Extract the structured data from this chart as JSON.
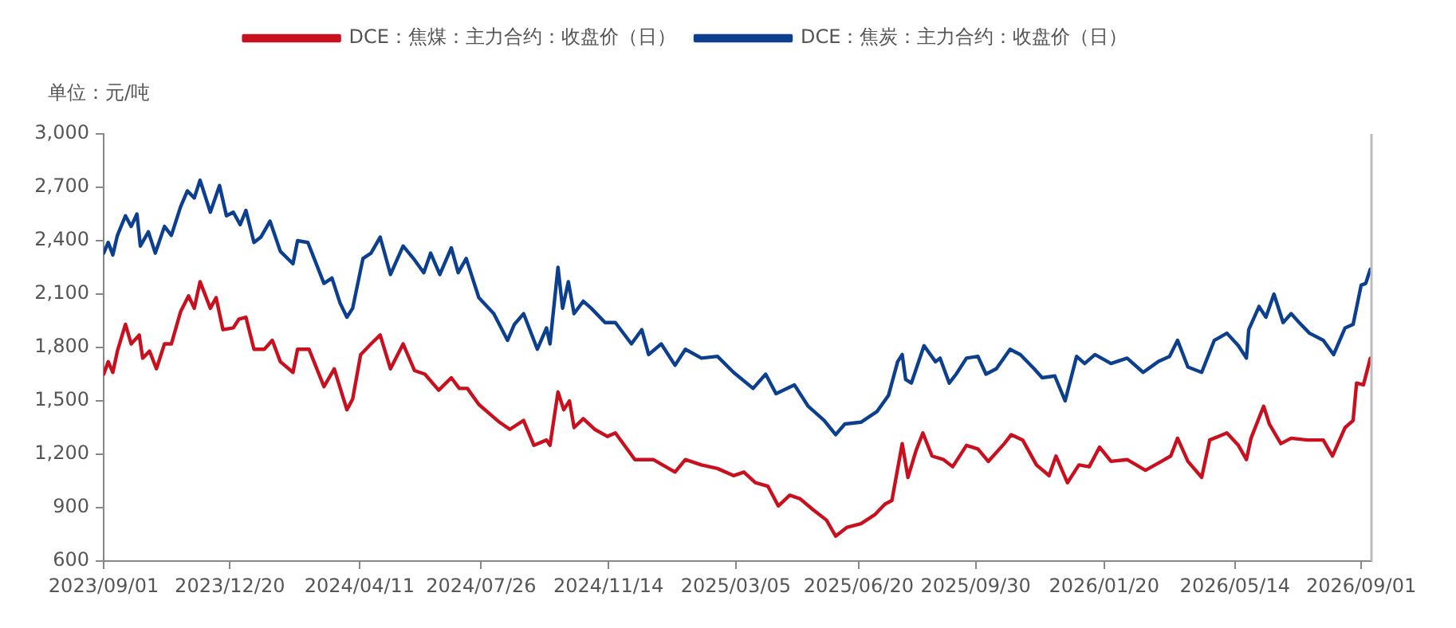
{
  "chart_data": {
    "type": "line",
    "ylabel": "单位：元/吨",
    "xlim": [
      "2023-09-01",
      "2026-09-10"
    ],
    "xticks": [
      {
        "value": "2023-09-01",
        "label": "2023/09/01"
      },
      {
        "value": "2023-12-20",
        "label": "2023/12/20"
      },
      {
        "value": "2024-04-11",
        "label": "2024/04/11"
      },
      {
        "value": "2024-07-26",
        "label": "2024/07/26"
      },
      {
        "value": "2024-11-14",
        "label": "2024/11/14"
      },
      {
        "value": "2025-03-05",
        "label": "2025/03/05"
      },
      {
        "value": "2025-06-20",
        "label": "2025/06/20"
      },
      {
        "value": "2025-09-30",
        "label": "2025/09/30"
      },
      {
        "value": "2026-01-20",
        "label": "2026/01/20"
      },
      {
        "value": "2026-05-14",
        "label": "2026/05/14"
      },
      {
        "value": "2026-09-01",
        "label": "2026/09/01"
      }
    ],
    "ylim": [
      600,
      3000
    ],
    "yticks": [
      600,
      900,
      {
        "value": 1200,
        "label": "1,200"
      },
      {
        "value": 1500,
        "label": "1,500"
      },
      {
        "value": 1800,
        "label": "1,800"
      },
      {
        "value": 2100,
        "label": "2,100"
      },
      {
        "value": 2400,
        "label": "2,400"
      },
      {
        "value": 2700,
        "label": "2,700"
      },
      {
        "value": 3000,
        "label": "3,000"
      }
    ],
    "grid": false,
    "legend": "top",
    "line_style": "solid",
    "series": [
      {
        "name": "DCE：焦煤：主力合约：收盘价（日）",
        "color": "#c8101e",
        "x": [
          "2023-09-01",
          "2023-09-05",
          "2023-09-09",
          "2023-09-13",
          "2023-09-20",
          "2023-09-25",
          "2023-10-02",
          "2023-10-05",
          "2023-10-11",
          "2023-10-17",
          "2023-10-24",
          "2023-10-30",
          "2023-11-07",
          "2023-11-14",
          "2023-11-19",
          "2023-11-24",
          "2023-12-03",
          "2023-12-08",
          "2023-12-14",
          "2023-12-23",
          "2023-12-28",
          "2024-01-03",
          "2024-01-10",
          "2024-01-19",
          "2024-01-26",
          "2024-02-02",
          "2024-02-13",
          "2024-02-17",
          "2024-02-27",
          "2024-03-11",
          "2024-03-20",
          "2024-03-31",
          "2024-04-05",
          "2024-04-12",
          "2024-04-21",
          "2024-04-29",
          "2024-05-08",
          "2024-05-19",
          "2024-05-29",
          "2024-06-07",
          "2024-06-19",
          "2024-06-30",
          "2024-07-07",
          "2024-07-14",
          "2024-07-24",
          "2024-08-11",
          "2024-08-20",
          "2024-09-01",
          "2024-09-10",
          "2024-09-21",
          "2024-09-24",
          "2024-10-01",
          "2024-10-06",
          "2024-10-11",
          "2024-10-15",
          "2024-10-23",
          "2024-11-02",
          "2024-11-13",
          "2024-11-20",
          "2024-12-07",
          "2024-12-23",
          "2025-01-11",
          "2025-01-20",
          "2025-02-03",
          "2025-02-17",
          "2025-03-03",
          "2025-03-12",
          "2025-03-22",
          "2025-04-02",
          "2025-04-11",
          "2025-04-21",
          "2025-04-30",
          "2025-05-11",
          "2025-05-23",
          "2025-05-31",
          "2025-06-10",
          "2025-06-22",
          "2025-07-04",
          "2025-07-13",
          "2025-07-19",
          "2025-07-28",
          "2025-08-02",
          "2025-08-09",
          "2025-08-15",
          "2025-08-23",
          "2025-09-02",
          "2025-09-10",
          "2025-09-22",
          "2025-10-02",
          "2025-10-11",
          "2025-10-25",
          "2025-10-31",
          "2025-11-10",
          "2025-11-22",
          "2025-12-03",
          "2025-12-09",
          "2025-12-19",
          "2025-12-29",
          "2026-01-07",
          "2026-01-16",
          "2026-01-26",
          "2026-02-09",
          "2026-02-25",
          "2026-03-11",
          "2026-03-19",
          "2026-03-25",
          "2026-04-03",
          "2026-04-15",
          "2026-04-22",
          "2026-05-07",
          "2026-05-17",
          "2026-05-24",
          "2026-05-28",
          "2026-06-08",
          "2026-06-13",
          "2026-06-23",
          "2026-07-02",
          "2026-07-16",
          "2026-07-30",
          "2026-08-07",
          "2026-08-18",
          "2026-08-25",
          "2026-08-28",
          "2026-09-03",
          "2026-09-09"
        ],
        "values": [
          1650,
          1720,
          1660,
          1780,
          1930,
          1820,
          1870,
          1740,
          1780,
          1680,
          1820,
          1820,
          2000,
          2090,
          2020,
          2170,
          2020,
          2080,
          1900,
          1910,
          1960,
          1970,
          1790,
          1790,
          1840,
          1720,
          1660,
          1790,
          1790,
          1580,
          1680,
          1450,
          1510,
          1760,
          1820,
          1870,
          1680,
          1820,
          1670,
          1650,
          1560,
          1630,
          1570,
          1570,
          1480,
          1380,
          1340,
          1390,
          1250,
          1280,
          1250,
          1550,
          1450,
          1500,
          1350,
          1400,
          1340,
          1300,
          1320,
          1170,
          1170,
          1100,
          1170,
          1140,
          1120,
          1080,
          1100,
          1040,
          1020,
          910,
          970,
          950,
          890,
          830,
          740,
          790,
          810,
          860,
          920,
          940,
          1260,
          1070,
          1220,
          1320,
          1190,
          1170,
          1130,
          1250,
          1230,
          1160,
          1260,
          1310,
          1280,
          1140,
          1080,
          1190,
          1040,
          1140,
          1130,
          1240,
          1160,
          1170,
          1110,
          1160,
          1190,
          1290,
          1160,
          1070,
          1280,
          1320,
          1250,
          1170,
          1290,
          1470,
          1370,
          1260,
          1290,
          1280,
          1280,
          1190,
          1350,
          1390,
          1600,
          1590,
          1740
        ]
      },
      {
        "name": "DCE：焦炭：主力合约：收盘价（日）",
        "color": "#0c3f8e",
        "x": [
          "2023-09-01",
          "2023-09-05",
          "2023-09-09",
          "2023-09-13",
          "2023-09-20",
          "2023-09-25",
          "2023-09-30",
          "2023-10-03",
          "2023-10-10",
          "2023-10-16",
          "2023-10-24",
          "2023-10-30",
          "2023-11-07",
          "2023-11-13",
          "2023-11-19",
          "2023-11-24",
          "2023-12-03",
          "2023-12-11",
          "2023-12-17",
          "2023-12-23",
          "2023-12-29",
          "2024-01-03",
          "2024-01-10",
          "2024-01-16",
          "2024-01-24",
          "2024-02-02",
          "2024-02-13",
          "2024-02-17",
          "2024-02-26",
          "2024-03-11",
          "2024-03-18",
          "2024-03-25",
          "2024-03-31",
          "2024-04-05",
          "2024-04-14",
          "2024-04-21",
          "2024-04-29",
          "2024-05-08",
          "2024-05-19",
          "2024-05-28",
          "2024-06-06",
          "2024-06-12",
          "2024-06-20",
          "2024-06-30",
          "2024-07-06",
          "2024-07-13",
          "2024-07-24",
          "2024-08-06",
          "2024-08-18",
          "2024-08-24",
          "2024-09-01",
          "2024-09-13",
          "2024-09-21",
          "2024-09-24",
          "2024-10-01",
          "2024-10-05",
          "2024-10-10",
          "2024-10-15",
          "2024-10-23",
          "2024-10-30",
          "2024-11-11",
          "2024-11-20",
          "2024-12-04",
          "2024-12-13",
          "2024-12-19",
          "2024-12-30",
          "2025-01-11",
          "2025-01-20",
          "2025-02-03",
          "2025-02-17",
          "2025-03-03",
          "2025-03-20",
          "2025-03-31",
          "2025-04-09",
          "2025-04-25",
          "2025-05-07",
          "2025-05-21",
          "2025-05-31",
          "2025-06-08",
          "2025-06-22",
          "2025-07-06",
          "2025-07-16",
          "2025-07-24",
          "2025-07-28",
          "2025-07-31",
          "2025-08-05",
          "2025-08-16",
          "2025-08-26",
          "2025-08-30",
          "2025-09-07",
          "2025-09-13",
          "2025-09-22",
          "2025-10-02",
          "2025-10-09",
          "2025-10-18",
          "2025-10-30",
          "2025-11-08",
          "2025-11-20",
          "2025-11-27",
          "2025-12-08",
          "2025-12-17",
          "2025-12-27",
          "2026-01-03",
          "2026-01-12",
          "2026-01-26",
          "2026-02-09",
          "2026-02-23",
          "2026-03-08",
          "2026-03-18",
          "2026-03-25",
          "2026-04-03",
          "2026-04-15",
          "2026-04-26",
          "2026-05-07",
          "2026-05-17",
          "2026-05-24",
          "2026-05-26",
          "2026-06-04",
          "2026-06-10",
          "2026-06-17",
          "2026-06-25",
          "2026-07-02",
          "2026-07-09",
          "2026-07-18",
          "2026-07-30",
          "2026-08-08",
          "2026-08-18",
          "2026-08-25",
          "2026-09-01",
          "2026-09-05",
          "2026-09-09"
        ],
        "values": [
          2330,
          2390,
          2320,
          2430,
          2540,
          2480,
          2550,
          2370,
          2450,
          2330,
          2480,
          2430,
          2590,
          2680,
          2640,
          2740,
          2560,
          2710,
          2540,
          2560,
          2490,
          2570,
          2390,
          2420,
          2510,
          2340,
          2270,
          2400,
          2390,
          2160,
          2190,
          2050,
          1970,
          2020,
          2300,
          2330,
          2420,
          2210,
          2370,
          2300,
          2220,
          2330,
          2210,
          2360,
          2220,
          2300,
          2080,
          1990,
          1840,
          1930,
          1990,
          1790,
          1910,
          1820,
          2250,
          2020,
          2170,
          1990,
          2060,
          2020,
          1940,
          1940,
          1820,
          1900,
          1760,
          1820,
          1700,
          1790,
          1740,
          1750,
          1660,
          1570,
          1650,
          1540,
          1590,
          1470,
          1390,
          1310,
          1370,
          1380,
          1440,
          1530,
          1720,
          1760,
          1620,
          1600,
          1810,
          1720,
          1740,
          1600,
          1650,
          1740,
          1750,
          1650,
          1680,
          1790,
          1760,
          1680,
          1630,
          1640,
          1500,
          1750,
          1710,
          1760,
          1710,
          1740,
          1660,
          1720,
          1750,
          1840,
          1690,
          1660,
          1840,
          1880,
          1810,
          1740,
          1900,
          2030,
          1970,
          2100,
          1940,
          1990,
          1940,
          1880,
          1840,
          1760,
          1910,
          1930,
          2150,
          2160,
          2240
        ]
      }
    ]
  }
}
